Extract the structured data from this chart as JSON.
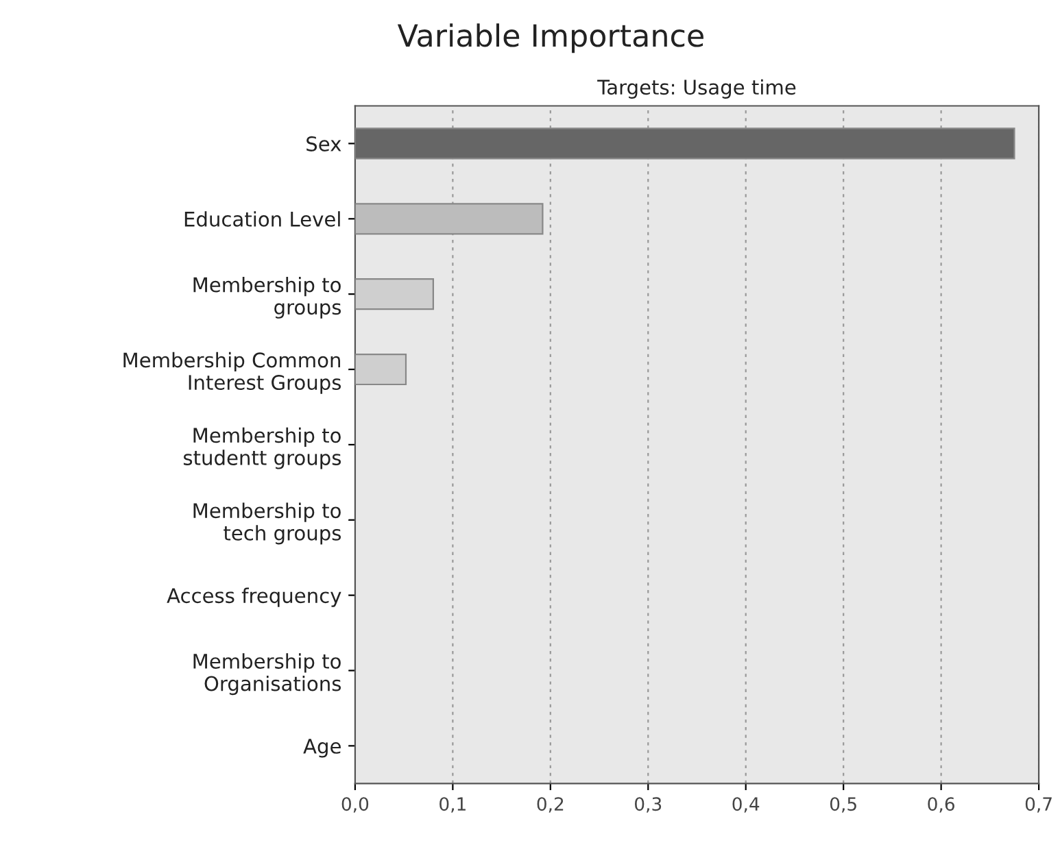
{
  "chart_data": {
    "type": "bar",
    "orientation": "horizontal",
    "title": "Variable Importance",
    "subtitle": "Targets: Usage time",
    "categories": [
      "Sex",
      "Education Level",
      "Membership to\ngroups",
      "Membership Common\nInterest Groups",
      "Membership to\nstudentt groups",
      "Membership to\ntech groups",
      "Access frequency",
      "Membership to\nOrganisations",
      "Age"
    ],
    "values": [
      0.675,
      0.192,
      0.08,
      0.052,
      0,
      0,
      0,
      0,
      0
    ],
    "colors": [
      "#666666",
      "#bcbcbc",
      "#cfcfcf",
      "#cfcfcf",
      "#cfcfcf",
      "#cfcfcf",
      "#cfcfcf",
      "#cfcfcf",
      "#cfcfcf"
    ],
    "xlim": [
      0,
      0.7
    ],
    "xticks": [
      {
        "value": 0,
        "label": "0,0"
      },
      {
        "value": 0.1,
        "label": "0,1"
      },
      {
        "value": 0.2,
        "label": "0,2"
      },
      {
        "value": 0.3,
        "label": "0,3"
      },
      {
        "value": 0.4,
        "label": "0,4"
      },
      {
        "value": 0.5,
        "label": "0,5"
      },
      {
        "value": 0.6,
        "label": "0,6"
      },
      {
        "value": 0.7,
        "label": "0,7"
      }
    ],
    "grid": "x",
    "legend": false
  }
}
